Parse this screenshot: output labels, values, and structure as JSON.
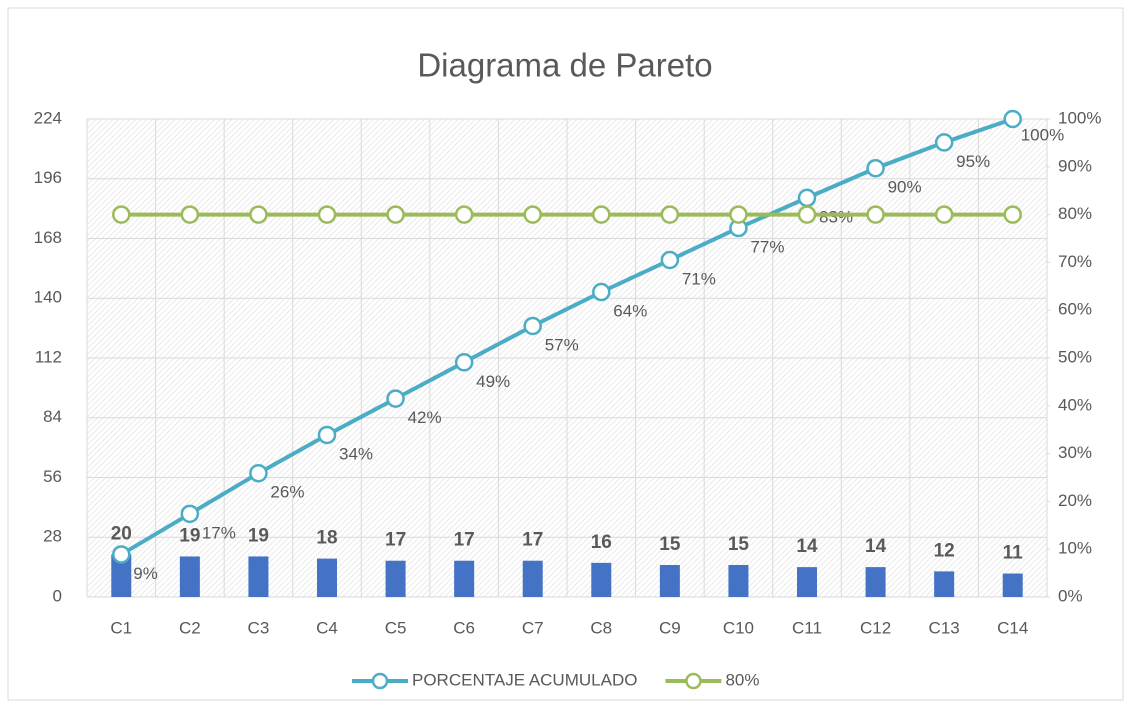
{
  "chart_data": {
    "type": "pareto",
    "title": "Diagrama de Pareto",
    "categories": [
      "C1",
      "C2",
      "C3",
      "C4",
      "C5",
      "C6",
      "C7",
      "C8",
      "C9",
      "C10",
      "C11",
      "C12",
      "C13",
      "C14"
    ],
    "series": [
      {
        "type": "bar",
        "color": "#4472c4",
        "values": [
          20,
          19,
          19,
          18,
          17,
          17,
          17,
          16,
          15,
          15,
          14,
          14,
          12,
          11
        ]
      },
      {
        "type": "line",
        "name": "PORCENTAJE ACUMULADO",
        "color": "#4bacc6",
        "axis": "y2",
        "values": [
          8.9,
          17.4,
          25.9,
          33.9,
          41.5,
          49.1,
          56.7,
          63.8,
          70.5,
          77.2,
          83.5,
          89.7,
          95.1,
          100
        ],
        "value_labels": [
          "9%",
          "17%",
          "26%",
          "34%",
          "42%",
          "49%",
          "57%",
          "64%",
          "71%",
          "77%",
          "83%",
          "90%",
          "95%",
          "100%"
        ]
      },
      {
        "type": "line",
        "name": "80%",
        "color": "#9bbb59",
        "axis": "y2",
        "values": [
          80,
          80,
          80,
          80,
          80,
          80,
          80,
          80,
          80,
          80,
          80,
          80,
          80,
          80
        ]
      }
    ],
    "ylim": [
      0,
      224
    ],
    "yticks": [
      0,
      28,
      56,
      84,
      112,
      140,
      168,
      196,
      224
    ],
    "y2lim": [
      0,
      100
    ],
    "y2ticks": [
      {
        "value": 0,
        "label": "0%"
      },
      {
        "value": 10,
        "label": "10%"
      },
      {
        "value": 20,
        "label": "20%"
      },
      {
        "value": 30,
        "label": "30%"
      },
      {
        "value": 40,
        "label": "40%"
      },
      {
        "value": 50,
        "label": "50%"
      },
      {
        "value": 60,
        "label": "60%"
      },
      {
        "value": 70,
        "label": "70%"
      },
      {
        "value": 80,
        "label": "80%"
      },
      {
        "value": 90,
        "label": "90%"
      },
      {
        "value": 100,
        "label": "100%"
      }
    ],
    "grid": true,
    "legend": "bottom"
  }
}
